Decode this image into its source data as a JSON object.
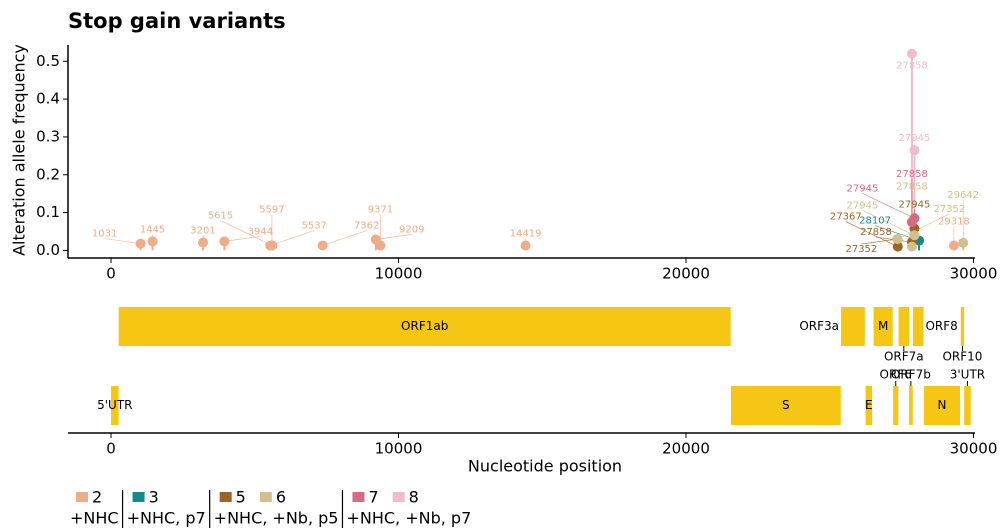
{
  "chart_data": {
    "type": "lollipop",
    "title": "Stop gain variants",
    "y_label": "Alteration allele frequency",
    "x_label": "Nucleotide position",
    "xlim": [
      -1496,
      30052
    ],
    "ylim": [
      -0.02,
      0.543
    ],
    "xticks": [
      0,
      10000,
      20000,
      30000
    ],
    "yticks": [
      {
        "value": 0,
        "label": "0.0"
      },
      0.1,
      0.2,
      0.3,
      0.4,
      0.5
    ],
    "groups": [
      {
        "label": "+NHC",
        "series": [
          {
            "name": "2",
            "color": "#eeac8a",
            "x": [
              1031,
              1445,
              3201,
              3944,
              5537,
              5597,
              5615,
              7362,
              9209,
              9371,
              14419,
              29318
            ],
            "values": [
              0.018,
              0.024,
              0.021,
              0.024,
              0.013,
              0.013,
              0.013,
              0.013,
              0.029,
              0.013,
              0.013,
              0.013
            ]
          }
        ]
      },
      {
        "label": "+NHC, p7",
        "series": [
          {
            "name": "3",
            "color": "#138b8b",
            "x": [
              28107
            ],
            "values": [
              0.026
            ]
          }
        ]
      },
      {
        "label": "+NHC, +Nb, p5",
        "series": [
          {
            "name": "5",
            "color": "#9c6428",
            "x": [
              27945,
              27352,
              27858,
              27367
            ],
            "values": [
              0.058,
              0.03,
              0.022,
              0.01
            ]
          },
          {
            "name": "6",
            "color": "#d2bf8e",
            "x": [
              27352,
              27858,
              27945,
              29642
            ],
            "values": [
              0.03,
              0.01,
              0.04,
              0.02
            ]
          }
        ]
      },
      {
        "label": "+NHC, +Nb, p7",
        "series": [
          {
            "name": "7",
            "color": "#d66a80",
            "x": [
              27945,
              27858
            ],
            "values": [
              0.085,
              0.075
            ]
          },
          {
            "name": "8",
            "color": "#f0bccb",
            "x": [
              27858,
              27945
            ],
            "values": [
              0.52,
              0.265
            ]
          }
        ]
      }
    ],
    "gene_color": "#f5c614",
    "tracks": [
      {
        "genes": [
          {
            "name": "ORF1ab",
            "start": 266,
            "end": 21555
          },
          {
            "name": "ORF3a",
            "start": 25393,
            "end": 26220
          },
          {
            "name": "M",
            "start": 26523,
            "end": 27191
          },
          {
            "name": "ORF7a",
            "start": 27394,
            "end": 27759
          },
          {
            "name": "ORF8",
            "start": 27894,
            "end": 28259
          },
          {
            "name": "ORF10",
            "start": 29558,
            "end": 29674
          }
        ]
      },
      {
        "genes": [
          {
            "name": "5'UTR",
            "start": 1,
            "end": 265
          },
          {
            "name": "S",
            "start": 21563,
            "end": 25384
          },
          {
            "name": "E",
            "start": 26245,
            "end": 26472
          },
          {
            "name": "ORF6",
            "start": 27202,
            "end": 27387
          },
          {
            "name": "ORF7b",
            "start": 27756,
            "end": 27887
          },
          {
            "name": "N",
            "start": 28274,
            "end": 29533
          },
          {
            "name": "3'UTR",
            "start": 29675,
            "end": 29903
          }
        ]
      }
    ]
  }
}
